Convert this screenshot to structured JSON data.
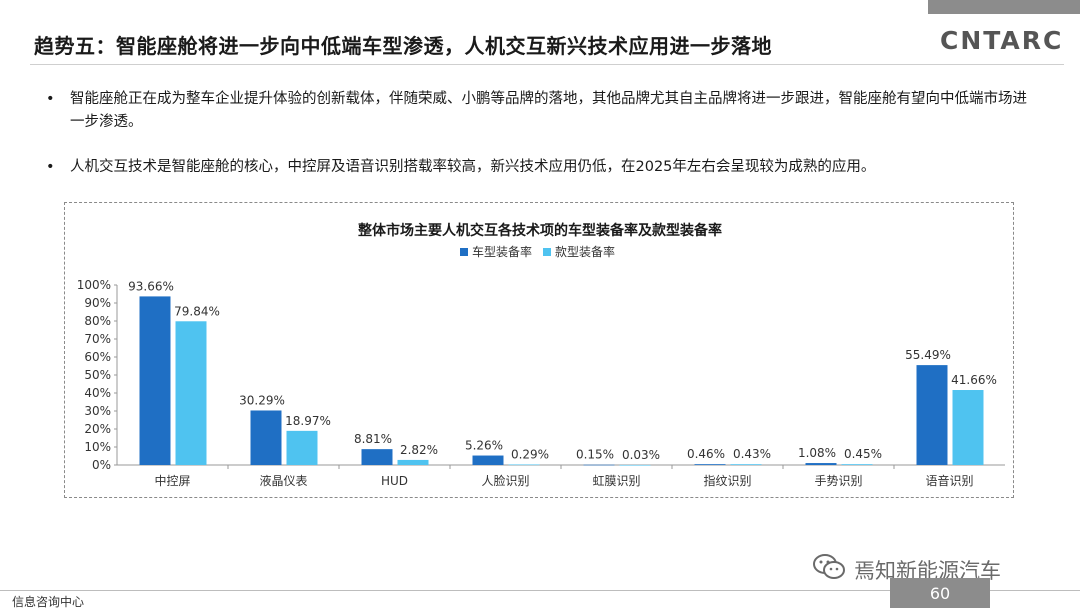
{
  "slide": {
    "title": "趋势五：智能座舱将进一步向中低端车型渗透，人机交互新兴技术应用进一步落地",
    "logo_text": "CNTARC",
    "bullets": [
      "智能座舱正在成为整车企业提升体验的创新载体，伴随荣威、小鹏等品牌的落地，其他品牌尤其自主品牌将进一步跟进，智能座舱有望向中低端市场进一步渗透。",
      "人机交互技术是智能座舱的核心，中控屏及语音识别搭载率较高，新兴技术应用仍低，在2025年左右会呈现较为成熟的应用。"
    ],
    "footer_text": "信息咨询中心",
    "page_number": "60",
    "watermark_text": "焉知新能源汽车"
  },
  "chart_data": {
    "type": "bar",
    "title": "整体市场主要人机交互各技术项的车型装备率及款型装备率",
    "categories": [
      "中控屏",
      "液晶仪表",
      "HUD",
      "人脸识别",
      "虹膜识别",
      "指纹识别",
      "手势识别",
      "语音识别"
    ],
    "series": [
      {
        "name": "车型装备率",
        "color": "#1f6fc4",
        "values": [
          93.66,
          30.29,
          8.81,
          5.26,
          0.15,
          0.46,
          1.08,
          55.49
        ]
      },
      {
        "name": "款型装备率",
        "color": "#4fc3f0",
        "values": [
          79.84,
          18.97,
          2.82,
          0.29,
          0.03,
          0.43,
          0.45,
          41.66
        ]
      }
    ],
    "data_labels": [
      [
        "93.66%",
        "30.29%",
        "8.81%",
        "5.26%",
        "0.15%",
        "0.46%",
        "1.08%",
        "55.49%"
      ],
      [
        "79.84%",
        "18.97%",
        "2.82%",
        "0.29%",
        "0.03%",
        "0.43%",
        "0.45%",
        "41.66%"
      ]
    ],
    "y_ticks": [
      "0%",
      "10%",
      "20%",
      "30%",
      "40%",
      "50%",
      "60%",
      "70%",
      "80%",
      "90%",
      "100%"
    ],
    "ylim": [
      0,
      100
    ],
    "grid": false,
    "legend_position": "top-center"
  }
}
